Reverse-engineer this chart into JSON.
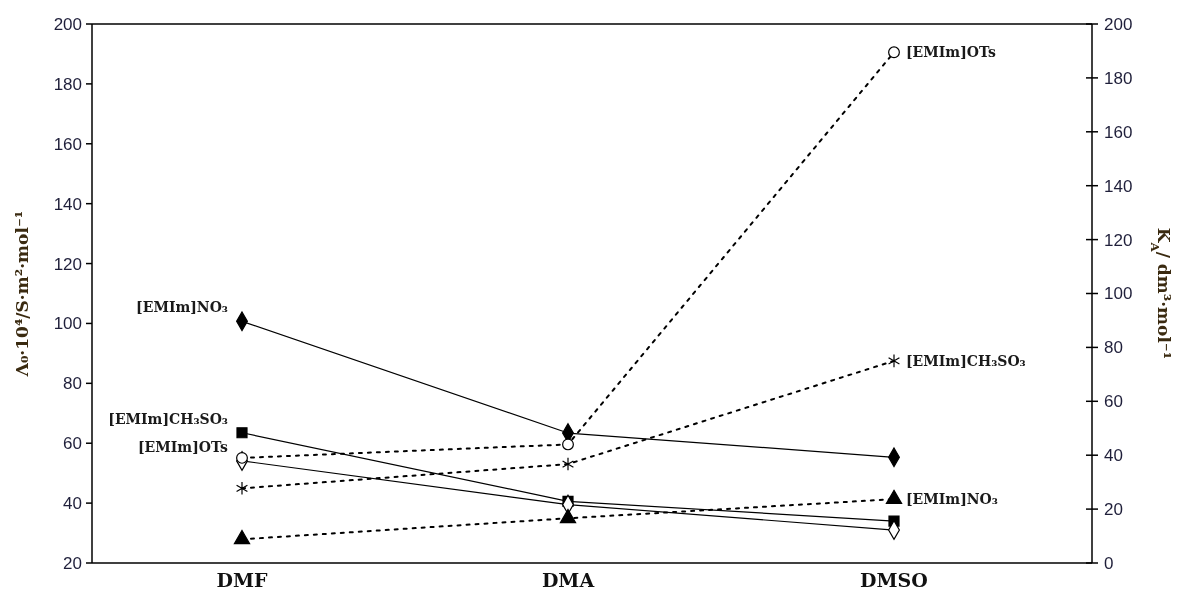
{
  "chart_data": {
    "type": "line",
    "categories": [
      "DMF",
      "DMA",
      "DMSO"
    ],
    "ylabel": "Λ₀·10⁴/S·m²·mol⁻¹",
    "y2label": "K$_{A}$/ dm³·mol⁻¹",
    "ylim": [
      20,
      200
    ],
    "yticks": [
      20,
      40,
      60,
      80,
      100,
      120,
      140,
      160,
      180,
      200
    ],
    "y2lim": [
      0,
      200
    ],
    "y2ticks": [
      0,
      20,
      40,
      60,
      80,
      100,
      120,
      140,
      160,
      180,
      200
    ],
    "grid": false,
    "series": [
      {
        "name": "[EMIm]NO₃",
        "color": "#000000",
        "marker": "diamond",
        "line_style": "solid",
        "values": [
          100.7,
          63.4,
          55.3
        ]
      },
      {
        "name": "[EMIm]CH₃SO₃",
        "color": "#000000",
        "marker": "square",
        "line_style": "solid",
        "values": [
          63.5,
          40.6,
          34
        ]
      },
      {
        "name": "[EMIm]OTs",
        "color": "#ffffff",
        "marker": "diamond",
        "line_style": "solid",
        "values": [
          54.1,
          39.5,
          31
        ]
      },
      {
        "name": "[EMIm]OTs",
        "color": "#ffffff",
        "marker": "circle",
        "line_style": "dotted",
        "axis": "y2",
        "values": [
          39,
          44,
          189.5
        ]
      },
      {
        "name": "[EMIm]CH₃SO₃",
        "color": "#000000",
        "marker": "cross",
        "line_style": "dotted",
        "axis": "y2",
        "values": [
          27.7,
          36.7,
          75
        ]
      },
      {
        "name": "[EMIm]NO₃",
        "color": "#000000",
        "marker": "triangle",
        "line_style": "dotted",
        "axis": "y2",
        "values": [
          8.8,
          16.6,
          23.7
        ]
      }
    ]
  }
}
